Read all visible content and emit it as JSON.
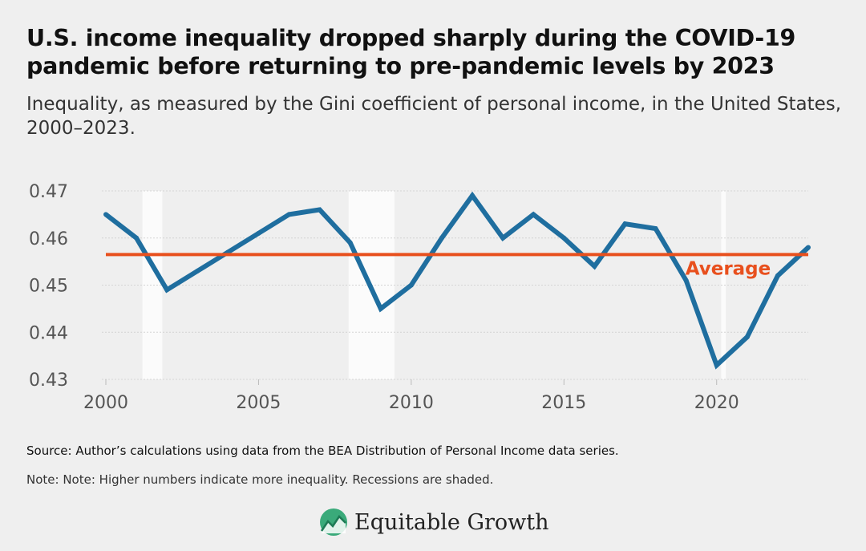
{
  "chart_data": {
    "type": "line",
    "title": "U.S. income inequality dropped sharply during the COVID-19 pandemic before returning to pre-pandemic levels by 2023",
    "subtitle": "Inequality, as measured by the Gini coefficient of personal income, in the United States, 2000–2023.",
    "x": [
      2000,
      2001,
      2002,
      2003,
      2004,
      2005,
      2006,
      2007,
      2008,
      2009,
      2010,
      2011,
      2012,
      2013,
      2014,
      2015,
      2016,
      2017,
      2018,
      2019,
      2020,
      2021,
      2022,
      2023
    ],
    "series": [
      {
        "name": "Gini coefficient",
        "color": "#1f6e9f",
        "values": [
          0.465,
          0.46,
          0.449,
          0.453,
          0.457,
          0.461,
          0.465,
          0.466,
          0.459,
          0.445,
          0.45,
          0.46,
          0.469,
          0.46,
          0.465,
          0.46,
          0.454,
          0.463,
          0.462,
          0.451,
          0.433,
          0.439,
          0.452,
          0.458
        ]
      }
    ],
    "average": {
      "label": "Average",
      "value": 0.4565,
      "color": "#e8501e"
    },
    "recessions": [
      [
        2001.2,
        2001.85
      ],
      [
        2007.95,
        2009.45
      ],
      [
        2020.15,
        2020.3
      ]
    ],
    "xlim": [
      2000,
      2023
    ],
    "ylim": [
      0.43,
      0.47
    ],
    "xticks": [
      2000,
      2005,
      2010,
      2015,
      2020
    ],
    "xtick_labels": [
      "2000",
      "2005",
      "2010",
      "2015",
      "2020"
    ],
    "yticks": [
      0.43,
      0.44,
      0.45,
      0.46,
      0.47
    ],
    "ytick_labels": [
      "0.43",
      "0.44",
      "0.45",
      "0.46",
      "0.47"
    ],
    "xlabel": "",
    "ylabel": "",
    "grid": true
  },
  "footer": {
    "source": "Source: Author’s calculations using data from the BEA Distribution of Personal Income data series.",
    "note": "Note: Note: Higher numbers indicate more inequality. Recessions are shaded."
  },
  "brand": {
    "name": "Equitable Growth",
    "accent": "#3aaa7a"
  }
}
